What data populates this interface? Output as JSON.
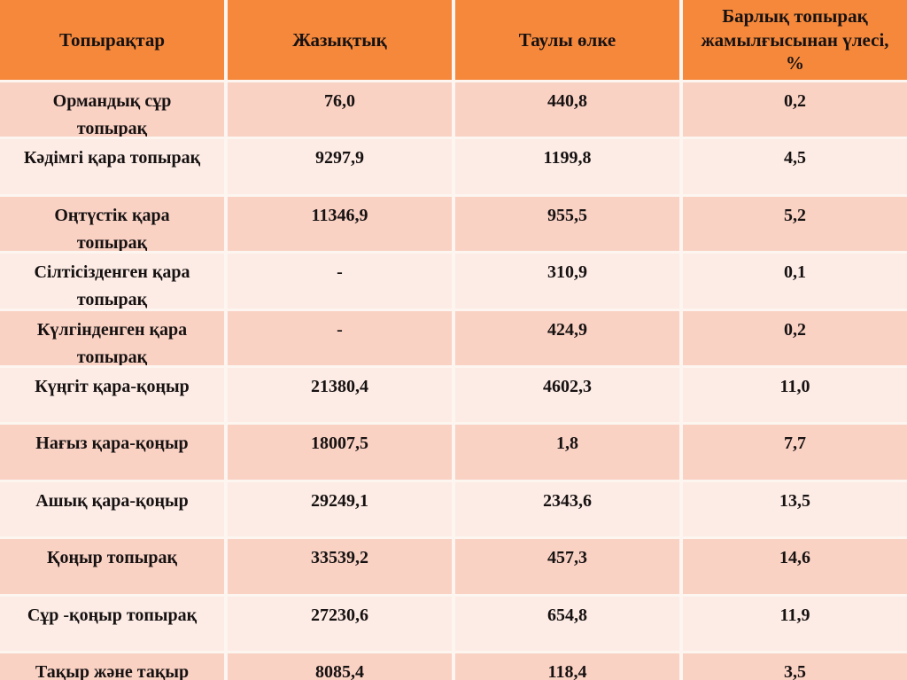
{
  "colors": {
    "header_bg": "#F6883B",
    "band_dark": "#FAD2C4",
    "band_light": "#FDECE5",
    "gap": "#FCF5F0",
    "text": "#171212"
  },
  "table": {
    "headers": [
      "Топырақтар",
      "Жазықтық",
      "Таулы өлке",
      "Барлық топырақ\nжамылғысынан үлесі,\n%"
    ],
    "rows": [
      {
        "soil": "Ормандық сұр\nтопырақ",
        "plain": "76,0",
        "mountain": "440,8",
        "share": "0,2"
      },
      {
        "soil": "Кәдімгі қара топырақ",
        "plain": "9297,9",
        "mountain": "1199,8",
        "share": "4,5"
      },
      {
        "soil": "Оңтүстік қара\nтопырақ",
        "plain": "11346,9",
        "mountain": "955,5",
        "share": "5,2"
      },
      {
        "soil": "Сілтісізденген қара\nтопырақ",
        "plain": "-",
        "mountain": "310,9",
        "share": "0,1"
      },
      {
        "soil": "Күлгінденген қара\nтопырақ",
        "plain": "-",
        "mountain": "424,9",
        "share": "0,2"
      },
      {
        "soil": "Күңгіт қара-қоңыр",
        "plain": "21380,4",
        "mountain": "4602,3",
        "share": "11,0"
      },
      {
        "soil": "Нағыз қара-қоңыр",
        "plain": "18007,5",
        "mountain": "1,8",
        "share": "7,7"
      },
      {
        "soil": "Ашық қара-қоңыр",
        "plain": "29249,1",
        "mountain": "2343,6",
        "share": "13,5"
      },
      {
        "soil": "Қоңыр топырақ",
        "plain": "33539,2",
        "mountain": "457,3",
        "share": "14,6"
      },
      {
        "soil": "Сұр -қоңыр топырақ",
        "plain": "27230,6",
        "mountain": "654,8",
        "share": "11,9"
      },
      {
        "soil": "Тақыр және тақыр",
        "plain": "8085,4",
        "mountain": "118,4",
        "share": "3,5"
      }
    ]
  }
}
